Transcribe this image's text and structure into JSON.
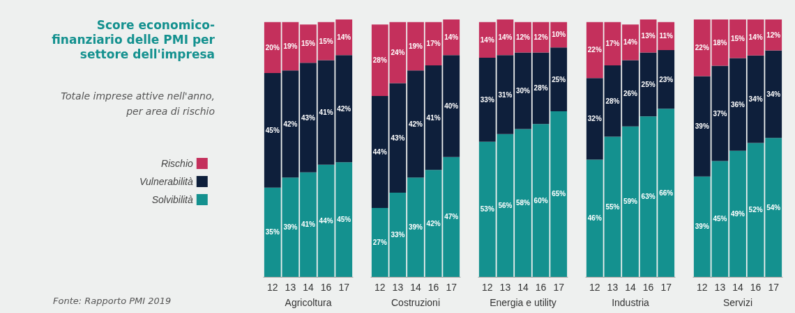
{
  "chart_data": [
    {
      "type": "bar",
      "title": "Score economico-finanziario delle PMI per settore dell'impresa",
      "subtitle": "Totale imprese attive nell'anno, per area di rischio",
      "annotations": [
        "Fonte: Rapporto PMI 2019"
      ],
      "xlabel": "Agricoltura",
      "categories": [
        "12",
        "13",
        "14",
        "16",
        "17"
      ],
      "stacked": true,
      "legend": "left",
      "series": [
        {
          "name": "Solvibilità",
          "color": "#14918f",
          "values": [
            35,
            39,
            41,
            44,
            45
          ],
          "value_labels": [
            "35%",
            "39%",
            "41%",
            "44%",
            "45%"
          ]
        },
        {
          "name": "Vulnerabilità",
          "color": "#0e1f3b",
          "values": [
            45,
            42,
            43,
            41,
            42
          ],
          "value_labels": [
            "45%",
            "42%",
            "43%",
            "41%",
            "42%"
          ]
        },
        {
          "name": "Rischio",
          "color": "#c4305c",
          "values": [
            20,
            19,
            15,
            15,
            14
          ],
          "value_labels": [
            "20%",
            "19%",
            "15%",
            "15%",
            "14%"
          ]
        }
      ]
    },
    {
      "type": "bar",
      "xlabel": "Costruzioni",
      "categories": [
        "12",
        "13",
        "14",
        "16",
        "17"
      ],
      "stacked": true,
      "series": [
        {
          "color": "#14918f",
          "values": [
            27,
            33,
            39,
            42,
            47
          ],
          "value_labels": [
            "27%",
            "33%",
            "39%",
            "42%",
            "47%"
          ]
        },
        {
          "color": "#0e1f3b",
          "values": [
            44,
            43,
            42,
            41,
            40
          ],
          "value_labels": [
            "44%",
            "43%",
            "42%",
            "41%",
            "40%"
          ]
        },
        {
          "color": "#c4305c",
          "values": [
            28,
            24,
            19,
            17,
            14
          ],
          "value_labels": [
            "28%",
            "24%",
            "19%",
            "17%",
            "14%"
          ]
        }
      ]
    },
    {
      "type": "bar",
      "xlabel": "Energia e utility",
      "categories": [
        "12",
        "13",
        "14",
        "16",
        "17"
      ],
      "stacked": true,
      "series": [
        {
          "color": "#14918f",
          "values": [
            53,
            56,
            58,
            60,
            65
          ],
          "value_labels": [
            "53%",
            "56%",
            "58%",
            "60%",
            "65%"
          ]
        },
        {
          "color": "#0e1f3b",
          "values": [
            33,
            31,
            30,
            28,
            25
          ],
          "value_labels": [
            "33%",
            "31%",
            "30%",
            "28%",
            "25%"
          ]
        },
        {
          "color": "#c4305c",
          "values": [
            14,
            14,
            12,
            12,
            10
          ],
          "value_labels": [
            "14%",
            "14%",
            "12%",
            "12%",
            "10%"
          ]
        }
      ]
    },
    {
      "type": "bar",
      "xlabel": "Industria",
      "categories": [
        "12",
        "13",
        "14",
        "16",
        "17"
      ],
      "stacked": true,
      "series": [
        {
          "color": "#14918f",
          "values": [
            46,
            55,
            59,
            63,
            66
          ],
          "value_labels": [
            "46%",
            "55%",
            "59%",
            "63%",
            "66%"
          ]
        },
        {
          "color": "#0e1f3b",
          "values": [
            32,
            28,
            26,
            25,
            23
          ],
          "value_labels": [
            "32%",
            "28%",
            "26%",
            "25%",
            "23%"
          ]
        },
        {
          "color": "#c4305c",
          "values": [
            22,
            17,
            14,
            13,
            11
          ],
          "value_labels": [
            "22%",
            "17%",
            "14%",
            "13%",
            "11%"
          ]
        }
      ]
    },
    {
      "type": "bar",
      "xlabel": "Servizi",
      "categories": [
        "12",
        "13",
        "14",
        "16",
        "17"
      ],
      "stacked": true,
      "series": [
        {
          "color": "#14918f",
          "values": [
            39,
            45,
            49,
            52,
            54
          ],
          "value_labels": [
            "39%",
            "45%",
            "49%",
            "52%",
            "54%"
          ]
        },
        {
          "color": "#0e1f3b",
          "values": [
            39,
            37,
            36,
            34,
            34
          ],
          "value_labels": [
            "39%",
            "37%",
            "36%",
            "34%",
            "34%"
          ]
        },
        {
          "color": "#c4305c",
          "values": [
            22,
            18,
            15,
            14,
            12
          ],
          "value_labels": [
            "22%",
            "18%",
            "15%",
            "14%",
            "12%"
          ]
        }
      ]
    }
  ]
}
